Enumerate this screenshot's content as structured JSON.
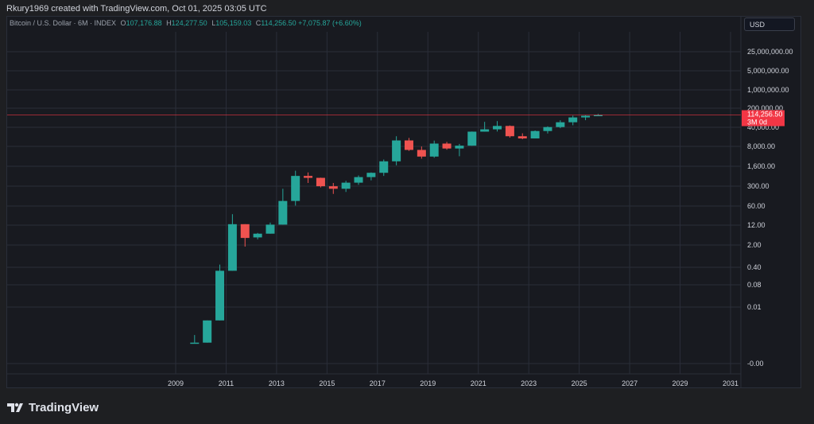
{
  "header": {
    "created_by": "Rkury1969 created with TradingView.com, Oct 01, 2025 03:05 UTC"
  },
  "legend": {
    "symbol": "Bitcoin / U.S. Dollar · 6M · INDEX",
    "open_label": "O",
    "open": "107,176.88",
    "high_label": "H",
    "high": "124,277.50",
    "low_label": "L",
    "low": "105,159.03",
    "close_label": "C",
    "close": "114,256.50",
    "change": "+7,075.87 (+6.60%)"
  },
  "currency_button": "USD",
  "price_tag": {
    "price": "114,256.50",
    "countdown": "3M 0d",
    "value": 114256.5
  },
  "footer": {
    "brand": "TradingView"
  },
  "colors": {
    "up": "#26a69a",
    "down": "#ef5350",
    "price_line": "#f23645",
    "grid": "#2a2e39",
    "panel": "#181a20",
    "background": "#1e1f22"
  },
  "chart_data": {
    "type": "candlestick",
    "y_scale": "log",
    "grid": true,
    "y_ticks": [
      "25,000,000.00",
      "5,000,000.00",
      "1,000,000.00",
      "200,000.00",
      "40,000.00",
      "8,000.00",
      "1,600.00",
      "300.00",
      "60.00",
      "12.00",
      "2.00",
      "0.40",
      "0.08",
      "0.01",
      "-0.00"
    ],
    "x_ticks": [
      "2009",
      "2011",
      "2013",
      "2015",
      "2017",
      "2019",
      "2021",
      "2023",
      "2025",
      "2027",
      "2029",
      "2031"
    ],
    "candles": [
      {
        "date": "2009-07",
        "open": 0.0008,
        "high": 0.0015,
        "low": 0.0008,
        "close": 0.0008
      },
      {
        "date": "2010-01",
        "open": 0.0008,
        "high": 0.005,
        "low": 0.0008,
        "close": 0.005
      },
      {
        "date": "2010-07",
        "open": 0.005,
        "high": 0.5,
        "low": 0.005,
        "close": 0.3
      },
      {
        "date": "2011-01",
        "open": 0.3,
        "high": 32,
        "low": 0.3,
        "close": 14
      },
      {
        "date": "2011-07",
        "open": 14,
        "high": 14,
        "low": 2.2,
        "close": 4.5
      },
      {
        "date": "2012-01",
        "open": 4.7,
        "high": 6.8,
        "low": 4,
        "close": 6.4
      },
      {
        "date": "2012-07",
        "open": 6.4,
        "high": 16,
        "low": 6.4,
        "close": 13.5
      },
      {
        "date": "2013-01",
        "open": 13.5,
        "high": 260,
        "low": 13.5,
        "close": 95
      },
      {
        "date": "2013-07",
        "open": 95,
        "high": 1150,
        "low": 65,
        "close": 750
      },
      {
        "date": "2014-01",
        "open": 750,
        "high": 1000,
        "low": 420,
        "close": 640
      },
      {
        "date": "2014-07",
        "open": 640,
        "high": 650,
        "low": 290,
        "close": 320
      },
      {
        "date": "2015-01",
        "open": 320,
        "high": 420,
        "low": 170,
        "close": 260
      },
      {
        "date": "2015-07",
        "open": 260,
        "high": 500,
        "low": 200,
        "close": 430
      },
      {
        "date": "2016-01",
        "open": 430,
        "high": 780,
        "low": 360,
        "close": 680
      },
      {
        "date": "2016-07",
        "open": 680,
        "high": 1000,
        "low": 520,
        "close": 970
      },
      {
        "date": "2017-01",
        "open": 970,
        "high": 2900,
        "low": 750,
        "close": 2500
      },
      {
        "date": "2017-07",
        "open": 2500,
        "high": 19800,
        "low": 1800,
        "close": 14000
      },
      {
        "date": "2018-01",
        "open": 14000,
        "high": 17200,
        "low": 5900,
        "close": 6400
      },
      {
        "date": "2018-07",
        "open": 6400,
        "high": 8500,
        "low": 3100,
        "close": 3700
      },
      {
        "date": "2019-01",
        "open": 3700,
        "high": 13800,
        "low": 3350,
        "close": 10800
      },
      {
        "date": "2019-07",
        "open": 10800,
        "high": 12400,
        "low": 6500,
        "close": 7200
      },
      {
        "date": "2020-01",
        "open": 7200,
        "high": 10500,
        "low": 3800,
        "close": 9100
      },
      {
        "date": "2020-07",
        "open": 9100,
        "high": 29300,
        "low": 9000,
        "close": 28900
      },
      {
        "date": "2021-01",
        "open": 28900,
        "high": 64800,
        "low": 28800,
        "close": 35000
      },
      {
        "date": "2021-07",
        "open": 35000,
        "high": 69000,
        "low": 29200,
        "close": 46200
      },
      {
        "date": "2022-01",
        "open": 46200,
        "high": 48200,
        "low": 17600,
        "close": 19800
      },
      {
        "date": "2022-07",
        "open": 19800,
        "high": 25200,
        "low": 15500,
        "close": 16500
      },
      {
        "date": "2023-01",
        "open": 16500,
        "high": 31800,
        "low": 16500,
        "close": 30400
      },
      {
        "date": "2023-07",
        "open": 30400,
        "high": 44700,
        "low": 24800,
        "close": 42200
      },
      {
        "date": "2024-01",
        "open": 42200,
        "high": 73800,
        "low": 38500,
        "close": 62700
      },
      {
        "date": "2024-07",
        "open": 62700,
        "high": 108300,
        "low": 49000,
        "close": 93400
      },
      {
        "date": "2025-01",
        "open": 93400,
        "high": 111900,
        "low": 74400,
        "close": 107176.88
      },
      {
        "date": "2025-07",
        "open": 107176.88,
        "high": 124277.5,
        "low": 105159.03,
        "close": 114256.5
      }
    ]
  }
}
